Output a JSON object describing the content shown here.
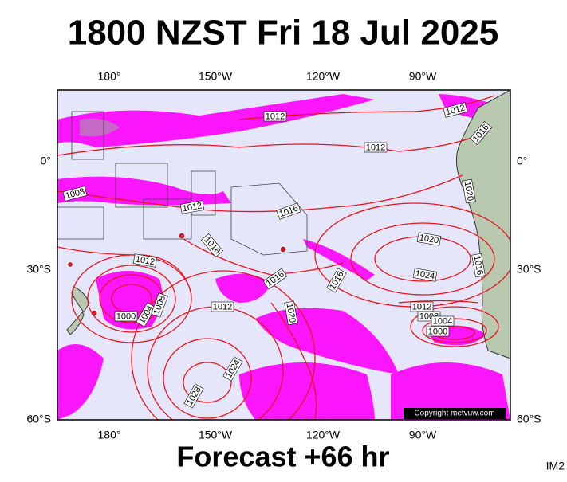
{
  "header": {
    "title": "1800 NZST Fri 18 Jul 2025"
  },
  "map": {
    "lon_labels": [
      "180°",
      "150°W",
      "120°W",
      "90°W"
    ],
    "lat_labels": [
      "0°",
      "30°S",
      "60°S"
    ],
    "isobar_labels": [
      "1012",
      "1012",
      "1016",
      "1012",
      "1008",
      "1012",
      "1016",
      "1020",
      "1016",
      "1020",
      "1012",
      "1024",
      "1016",
      "1016",
      "1016",
      "1012",
      "1012",
      "1008",
      "1004",
      "1000",
      "1000",
      "1004",
      "1008",
      "1020",
      "1024",
      "1028"
    ],
    "copyright": "Copyright metvuw.com"
  },
  "footer": {
    "forecast": "Forecast +66 hr",
    "code": "IM2"
  }
}
